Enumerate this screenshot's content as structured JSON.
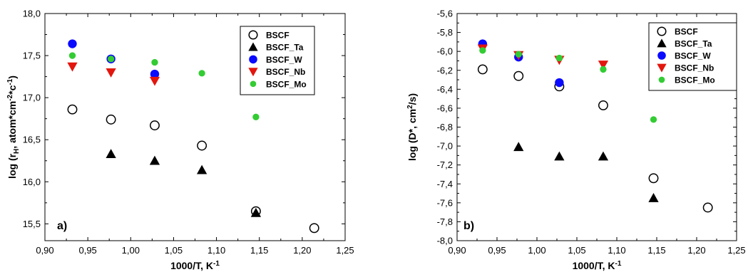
{
  "chart_data": [
    {
      "type": "scatter",
      "panel_label": "a)",
      "xlabel": "1000/T, K",
      "xlabel_sup": "-1",
      "ylabel_pre": "log (r",
      "ylabel_sub": "H",
      "ylabel_post": ", atom*cm",
      "ylabel_sup": "-2",
      "ylabel_post2": "*c",
      "ylabel_sup2": "-1",
      "ylabel_end": ")",
      "xlim": [
        0.9,
        1.25
      ],
      "ylim": [
        15.3,
        18.0
      ],
      "xticks": [
        0.9,
        0.95,
        1.0,
        1.05,
        1.1,
        1.15,
        1.2,
        1.25
      ],
      "xtick_labels": [
        "0,90",
        "0,95",
        "1,00",
        "1,05",
        "1,10",
        "1,15",
        "1,20",
        "1,25"
      ],
      "yticks": [
        15.5,
        16.0,
        16.5,
        17.0,
        17.5,
        18.0
      ],
      "ytick_labels": [
        "15,5",
        "16,0",
        "16,5",
        "17,0",
        "17,5",
        "18,0"
      ],
      "legend_position": "top-right",
      "series": [
        {
          "name": "BSCF",
          "marker": "circle-open",
          "color": "#000000",
          "points": [
            [
              0.932,
              16.86
            ],
            [
              0.977,
              16.74
            ],
            [
              1.028,
              16.67
            ],
            [
              1.083,
              16.43
            ],
            [
              1.146,
              15.65
            ],
            [
              1.214,
              15.45
            ]
          ]
        },
        {
          "name": "BSCF_Ta",
          "marker": "triangle-up",
          "color": "#000000",
          "points": [
            [
              0.977,
              16.33
            ],
            [
              1.028,
              16.25
            ],
            [
              1.083,
              16.14
            ],
            [
              1.146,
              15.63
            ]
          ]
        },
        {
          "name": "BSCF_W",
          "marker": "circle",
          "color": "#0a0aff",
          "points": [
            [
              0.932,
              17.64
            ],
            [
              0.977,
              17.46
            ],
            [
              1.028,
              17.28
            ]
          ]
        },
        {
          "name": "BSCF_Nb",
          "marker": "triangle-down",
          "color": "#e2160e",
          "points": [
            [
              0.932,
              17.37
            ],
            [
              0.977,
              17.3
            ],
            [
              1.028,
              17.2
            ]
          ]
        },
        {
          "name": "BSCF_Mo",
          "marker": "circle",
          "color": "#33cc33",
          "points": [
            [
              0.932,
              17.5
            ],
            [
              0.977,
              17.46
            ],
            [
              1.028,
              17.42
            ],
            [
              1.083,
              17.29
            ],
            [
              1.146,
              16.77
            ]
          ]
        }
      ]
    },
    {
      "type": "scatter",
      "panel_label": "b)",
      "xlabel": "1000/T, K",
      "xlabel_sup": "-1",
      "ylabel_pre": "log (D*, cm",
      "ylabel_sup": "2",
      "ylabel_post": "/s)",
      "xlim": [
        0.9,
        1.25
      ],
      "ylim": [
        -8.0,
        -5.6
      ],
      "xticks": [
        0.9,
        0.95,
        1.0,
        1.05,
        1.1,
        1.15,
        1.2,
        1.25
      ],
      "xtick_labels": [
        "0,90",
        "0,95",
        "1,00",
        "1,05",
        "1,10",
        "1,15",
        "1,20",
        "1,25"
      ],
      "yticks": [
        -8.0,
        -7.8,
        -7.6,
        -7.4,
        -7.2,
        -7.0,
        -6.8,
        -6.6,
        -6.4,
        -6.2,
        -6.0,
        -5.8,
        -5.6
      ],
      "ytick_labels": [
        "-8,0",
        "-7,8",
        "-7,6",
        "-7,4",
        "-7,2",
        "-7,0",
        "-6,8",
        "-6,6",
        "-6,4",
        "-6,2",
        "-6,0",
        "-5,8",
        "-5,6"
      ],
      "legend_position": "top-right",
      "series": [
        {
          "name": "BSCF",
          "marker": "circle-open",
          "color": "#000000",
          "points": [
            [
              0.932,
              -6.19
            ],
            [
              0.977,
              -6.26
            ],
            [
              1.028,
              -6.37
            ],
            [
              1.083,
              -6.57
            ],
            [
              1.146,
              -7.34
            ],
            [
              1.214,
              -7.65
            ]
          ]
        },
        {
          "name": "BSCF_Ta",
          "marker": "triangle-up",
          "color": "#000000",
          "points": [
            [
              0.977,
              -7.01
            ],
            [
              1.028,
              -7.11
            ],
            [
              1.083,
              -7.11
            ],
            [
              1.146,
              -7.55
            ]
          ]
        },
        {
          "name": "BSCF_W",
          "marker": "circle",
          "color": "#0a0aff",
          "points": [
            [
              0.932,
              -5.92
            ],
            [
              0.977,
              -6.06
            ],
            [
              1.028,
              -6.33
            ]
          ]
        },
        {
          "name": "BSCF_Nb",
          "marker": "triangle-down",
          "color": "#e2160e",
          "points": [
            [
              0.932,
              -5.97
            ],
            [
              0.977,
              -6.04
            ],
            [
              1.028,
              -6.09
            ],
            [
              1.083,
              -6.14
            ]
          ]
        },
        {
          "name": "BSCF_Mo",
          "marker": "circle",
          "color": "#33cc33",
          "points": [
            [
              0.932,
              -5.99
            ],
            [
              0.977,
              -6.03
            ],
            [
              1.028,
              -6.07
            ],
            [
              1.083,
              -6.19
            ],
            [
              1.146,
              -6.72
            ]
          ]
        }
      ]
    }
  ]
}
